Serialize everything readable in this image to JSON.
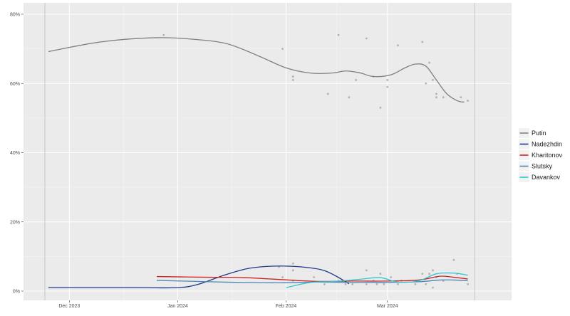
{
  "chart_data": {
    "type": "line",
    "title": "",
    "xlabel": "",
    "ylabel": "",
    "ylim": [
      0,
      81
    ],
    "xlim": [
      "2023-11-24",
      "2024-03-30"
    ],
    "grid": true,
    "legend_position": "right",
    "x_ticks": [
      {
        "date": "2023-12-01",
        "label": "Dec 2023"
      },
      {
        "date": "2024-01-01",
        "label": "Jan 2024"
      },
      {
        "date": "2024-02-01",
        "label": "Feb 2024"
      },
      {
        "date": "2024-03-01",
        "label": "Mar 2024"
      }
    ],
    "y_ticks": [
      {
        "value": 0,
        "label": "0%"
      },
      {
        "value": 20,
        "label": "20%"
      },
      {
        "value": 40,
        "label": "40%"
      },
      {
        "value": 60,
        "label": "60%"
      },
      {
        "value": 80,
        "label": "80%"
      }
    ],
    "reference_lines": [
      "2023-11-24",
      "2024-03-26"
    ],
    "series": [
      {
        "name": "Putin",
        "color": "#808080",
        "line": [
          {
            "x": "2023-11-25",
            "y": 69.2
          },
          {
            "x": "2023-12-10",
            "y": 72.0
          },
          {
            "x": "2023-12-25",
            "y": 73.2
          },
          {
            "x": "2024-01-05",
            "y": 72.8
          },
          {
            "x": "2024-01-15",
            "y": 71.5
          },
          {
            "x": "2024-01-24",
            "y": 68.0
          },
          {
            "x": "2024-02-01",
            "y": 64.5
          },
          {
            "x": "2024-02-08",
            "y": 63.0
          },
          {
            "x": "2024-02-14",
            "y": 63.0
          },
          {
            "x": "2024-02-18",
            "y": 63.6
          },
          {
            "x": "2024-02-22",
            "y": 63.1
          },
          {
            "x": "2024-02-26",
            "y": 62.0
          },
          {
            "x": "2024-03-02",
            "y": 62.5
          },
          {
            "x": "2024-03-06",
            "y": 64.5
          },
          {
            "x": "2024-03-09",
            "y": 65.6
          },
          {
            "x": "2024-03-12",
            "y": 65.0
          },
          {
            "x": "2024-03-15",
            "y": 61.0
          },
          {
            "x": "2024-03-18",
            "y": 57.0
          },
          {
            "x": "2024-03-21",
            "y": 55.0
          },
          {
            "x": "2024-03-23",
            "y": 54.6
          }
        ],
        "points": [
          {
            "x": "2023-12-28",
            "y": 74
          },
          {
            "x": "2024-01-31",
            "y": 70
          },
          {
            "x": "2024-02-03",
            "y": 62
          },
          {
            "x": "2024-02-03",
            "y": 61
          },
          {
            "x": "2024-02-13",
            "y": 57
          },
          {
            "x": "2024-02-16",
            "y": 74
          },
          {
            "x": "2024-02-19",
            "y": 56
          },
          {
            "x": "2024-02-21",
            "y": 61
          },
          {
            "x": "2024-02-24",
            "y": 73
          },
          {
            "x": "2024-02-26",
            "y": 62
          },
          {
            "x": "2024-02-28",
            "y": 53
          },
          {
            "x": "2024-03-01",
            "y": 61
          },
          {
            "x": "2024-03-01",
            "y": 59
          },
          {
            "x": "2024-03-04",
            "y": 71
          },
          {
            "x": "2024-03-11",
            "y": 72
          },
          {
            "x": "2024-03-12",
            "y": 60
          },
          {
            "x": "2024-03-13",
            "y": 66
          },
          {
            "x": "2024-03-14",
            "y": 61
          },
          {
            "x": "2024-03-15",
            "y": 57
          },
          {
            "x": "2024-03-15",
            "y": 56
          },
          {
            "x": "2024-03-17",
            "y": 56
          },
          {
            "x": "2024-03-22",
            "y": 56
          },
          {
            "x": "2024-03-24",
            "y": 55
          }
        ]
      },
      {
        "name": "Nadezhdin",
        "color": "#1a3a8a",
        "line": [
          {
            "x": "2023-11-25",
            "y": 1.0
          },
          {
            "x": "2023-12-20",
            "y": 1.0
          },
          {
            "x": "2024-01-01",
            "y": 1.0
          },
          {
            "x": "2024-01-07",
            "y": 2.0
          },
          {
            "x": "2024-01-14",
            "y": 4.5
          },
          {
            "x": "2024-01-21",
            "y": 6.5
          },
          {
            "x": "2024-01-28",
            "y": 7.2
          },
          {
            "x": "2024-02-04",
            "y": 7.1
          },
          {
            "x": "2024-02-11",
            "y": 6.2
          },
          {
            "x": "2024-02-15",
            "y": 4.5
          },
          {
            "x": "2024-02-19",
            "y": 2.1
          }
        ],
        "points": []
      },
      {
        "name": "Kharitonov",
        "color": "#cc2222",
        "line": [
          {
            "x": "2023-12-26",
            "y": 4.2
          },
          {
            "x": "2024-01-10",
            "y": 4.0
          },
          {
            "x": "2024-01-20",
            "y": 3.9
          },
          {
            "x": "2024-01-31",
            "y": 3.3
          },
          {
            "x": "2024-02-10",
            "y": 2.8
          },
          {
            "x": "2024-02-20",
            "y": 2.9
          },
          {
            "x": "2024-03-01",
            "y": 2.9
          },
          {
            "x": "2024-03-10",
            "y": 3.2
          },
          {
            "x": "2024-03-16",
            "y": 4.3
          },
          {
            "x": "2024-03-20",
            "y": 4.0
          },
          {
            "x": "2024-03-24",
            "y": 3.5
          }
        ],
        "points": []
      },
      {
        "name": "Slutsky",
        "color": "#4a86b8",
        "line": [
          {
            "x": "2023-12-26",
            "y": 3.1
          },
          {
            "x": "2024-01-10",
            "y": 2.7
          },
          {
            "x": "2024-01-20",
            "y": 2.5
          },
          {
            "x": "2024-01-31",
            "y": 2.4
          },
          {
            "x": "2024-02-10",
            "y": 2.6
          },
          {
            "x": "2024-02-20",
            "y": 2.5
          },
          {
            "x": "2024-03-01",
            "y": 2.5
          },
          {
            "x": "2024-03-10",
            "y": 2.7
          },
          {
            "x": "2024-03-16",
            "y": 3.2
          },
          {
            "x": "2024-03-20",
            "y": 3.2
          },
          {
            "x": "2024-03-24",
            "y": 3.0
          }
        ],
        "points": []
      },
      {
        "name": "Davankov",
        "color": "#2ec8d4",
        "line": [
          {
            "x": "2024-02-01",
            "y": 1.0
          },
          {
            "x": "2024-02-08",
            "y": 2.5
          },
          {
            "x": "2024-02-15",
            "y": 2.8
          },
          {
            "x": "2024-02-22",
            "y": 3.4
          },
          {
            "x": "2024-02-28",
            "y": 3.9
          },
          {
            "x": "2024-03-04",
            "y": 2.6
          },
          {
            "x": "2024-03-10",
            "y": 3.0
          },
          {
            "x": "2024-03-15",
            "y": 5.0
          },
          {
            "x": "2024-03-20",
            "y": 5.2
          },
          {
            "x": "2024-03-24",
            "y": 4.6
          }
        ],
        "points": []
      }
    ],
    "small_points": [
      {
        "x": "2024-01-30",
        "y": 7
      },
      {
        "x": "2024-01-31",
        "y": 4
      },
      {
        "x": "2024-02-03",
        "y": 8
      },
      {
        "x": "2024-02-03",
        "y": 6
      },
      {
        "x": "2024-02-03",
        "y": 3
      },
      {
        "x": "2024-02-09",
        "y": 4
      },
      {
        "x": "2024-02-12",
        "y": 2
      },
      {
        "x": "2024-02-16",
        "y": 3
      },
      {
        "x": "2024-02-18",
        "y": 2
      },
      {
        "x": "2024-02-20",
        "y": 2
      },
      {
        "x": "2024-02-24",
        "y": 6
      },
      {
        "x": "2024-02-24",
        "y": 2
      },
      {
        "x": "2024-02-26",
        "y": 3
      },
      {
        "x": "2024-02-27",
        "y": 2
      },
      {
        "x": "2024-02-28",
        "y": 5
      },
      {
        "x": "2024-02-29",
        "y": 2
      },
      {
        "x": "2024-03-02",
        "y": 4
      },
      {
        "x": "2024-03-04",
        "y": 2
      },
      {
        "x": "2024-03-05",
        "y": 3
      },
      {
        "x": "2024-03-09",
        "y": 2
      },
      {
        "x": "2024-03-11",
        "y": 5
      },
      {
        "x": "2024-03-12",
        "y": 2
      },
      {
        "x": "2024-03-13",
        "y": 5
      },
      {
        "x": "2024-03-14",
        "y": 6
      },
      {
        "x": "2024-03-14",
        "y": 1
      },
      {
        "x": "2024-03-15",
        "y": 4
      },
      {
        "x": "2024-03-17",
        "y": 3
      },
      {
        "x": "2024-03-20",
        "y": 9
      },
      {
        "x": "2024-03-21",
        "y": 5
      },
      {
        "x": "2024-03-24",
        "y": 2
      }
    ]
  }
}
